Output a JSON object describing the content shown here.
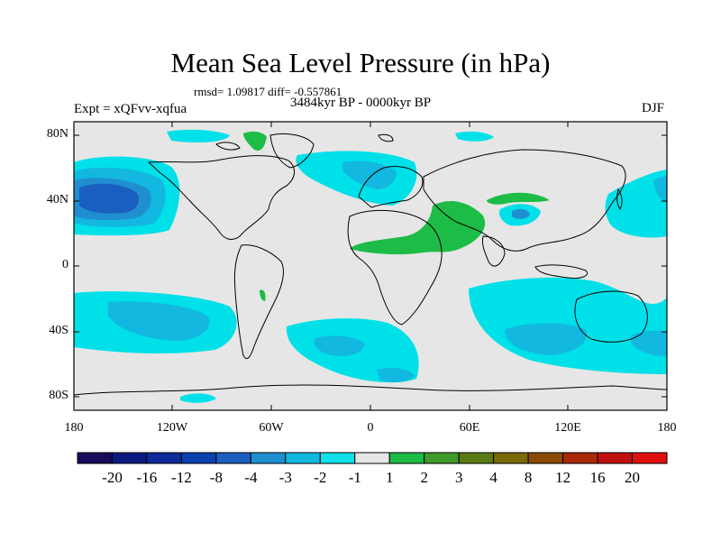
{
  "title": "Mean Sea Level Pressure (in hPa)",
  "stats": "rmsd= 1.09817 diff= -0.557861",
  "period": "3484kyr BP - 0000kyr BP",
  "experiment": "Expt = xQFvv-xqfua",
  "season": "DJF",
  "axes": {
    "lat_labels": [
      "80N",
      "40N",
      "0",
      "40S",
      "80S"
    ],
    "lon_labels": [
      "180",
      "120W",
      "60W",
      "0",
      "60E",
      "120E",
      "180"
    ]
  },
  "colorbar": {
    "labels": [
      "-20",
      "-16",
      "-12",
      "-8",
      "-4",
      "-3",
      "-2",
      "-1",
      "1",
      "2",
      "3",
      "4",
      "8",
      "12",
      "16",
      "20"
    ],
    "colors": [
      "#1a0a5a",
      "#0c1a80",
      "#0e2a9a",
      "#0a40b0",
      "#1a5fc0",
      "#1f8fd0",
      "#10b8e0",
      "#10e0e8",
      "#e6e6e6",
      "#1cbc46",
      "#3e9a2a",
      "#5a7a14",
      "#7a6a08",
      "#8a4a06",
      "#a82a08",
      "#c01010",
      "#e01010"
    ]
  },
  "colors": {
    "background": "#e6e6e6",
    "neg1": "#00e0e8",
    "neg2": "#12b8e0",
    "neg3": "#1f8fd0",
    "neg4": "#1a5fc0",
    "pos1": "#1cbc46"
  }
}
